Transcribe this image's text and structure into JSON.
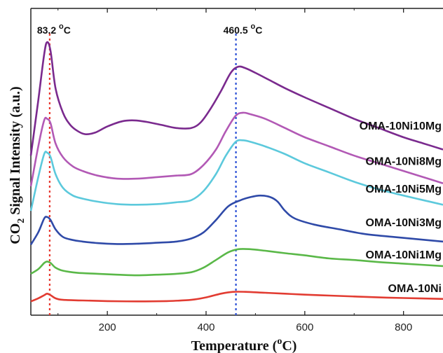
{
  "chart_data": {
    "type": "line",
    "xlabel": {
      "base": "Temperature (",
      "sup": "o",
      "tail": "C)"
    },
    "ylabel": {
      "pre": "CO",
      "sub": "2",
      "post": " Signal Intensity (a.u.)"
    },
    "xlim": [
      45,
      880
    ],
    "ylim": [
      0,
      100
    ],
    "xticks": [
      200,
      400,
      600,
      800
    ],
    "xtick_labels": [
      "200",
      "400",
      "600",
      "800"
    ],
    "peaks": [
      {
        "x": 83.2,
        "label": "83.2",
        "sup": "o",
        "unit": "C",
        "color": "#e8382f"
      },
      {
        "x": 460.5,
        "label": "460.5",
        "sup": "o",
        "unit": "C",
        "color": "#2a4fd6"
      }
    ],
    "series": [
      {
        "name": "OMA-10Ni10Mg",
        "color": "#7a2a8e",
        "points": [
          [
            45,
            52
          ],
          [
            60,
            70
          ],
          [
            72,
            85
          ],
          [
            78,
            89
          ],
          [
            85,
            86
          ],
          [
            95,
            74
          ],
          [
            110,
            66
          ],
          [
            125,
            62
          ],
          [
            140,
            60
          ],
          [
            155,
            59
          ],
          [
            175,
            59.5
          ],
          [
            200,
            61.5
          ],
          [
            230,
            63.2
          ],
          [
            255,
            63.5
          ],
          [
            280,
            63
          ],
          [
            310,
            62
          ],
          [
            340,
            61
          ],
          [
            370,
            61
          ],
          [
            390,
            63
          ],
          [
            410,
            67.5
          ],
          [
            430,
            73
          ],
          [
            450,
            79
          ],
          [
            465,
            81
          ],
          [
            480,
            80.5
          ],
          [
            500,
            79
          ],
          [
            530,
            76.5
          ],
          [
            560,
            74
          ],
          [
            600,
            71
          ],
          [
            650,
            67.5
          ],
          [
            700,
            64
          ],
          [
            750,
            61
          ],
          [
            800,
            58
          ],
          [
            840,
            56
          ],
          [
            880,
            54
          ]
        ]
      },
      {
        "name": "OMA-10Ni8Mg",
        "color": "#b259b5",
        "points": [
          [
            45,
            42
          ],
          [
            60,
            55
          ],
          [
            72,
            63.5
          ],
          [
            78,
            64
          ],
          [
            85,
            62.5
          ],
          [
            95,
            56
          ],
          [
            110,
            51.5
          ],
          [
            130,
            48.5
          ],
          [
            150,
            47
          ],
          [
            180,
            45.5
          ],
          [
            220,
            44.5
          ],
          [
            260,
            44.5
          ],
          [
            300,
            45
          ],
          [
            340,
            45.5
          ],
          [
            370,
            46
          ],
          [
            395,
            49
          ],
          [
            420,
            54
          ],
          [
            440,
            60
          ],
          [
            460,
            65
          ],
          [
            475,
            66
          ],
          [
            490,
            65.5
          ],
          [
            520,
            64
          ],
          [
            560,
            61
          ],
          [
            600,
            58
          ],
          [
            650,
            55
          ],
          [
            700,
            52
          ],
          [
            750,
            49.5
          ],
          [
            800,
            47
          ],
          [
            840,
            45
          ],
          [
            880,
            43
          ]
        ]
      },
      {
        "name": "OMA-10Ni5Mg",
        "color": "#5cc9dc",
        "points": [
          [
            45,
            34
          ],
          [
            60,
            45
          ],
          [
            72,
            52.5
          ],
          [
            78,
            53
          ],
          [
            85,
            51.5
          ],
          [
            95,
            46
          ],
          [
            110,
            41.5
          ],
          [
            130,
            39
          ],
          [
            150,
            38
          ],
          [
            180,
            37
          ],
          [
            220,
            36.2
          ],
          [
            260,
            36
          ],
          [
            300,
            36.2
          ],
          [
            340,
            36.8
          ],
          [
            370,
            37.5
          ],
          [
            395,
            40.5
          ],
          [
            420,
            46
          ],
          [
            440,
            52
          ],
          [
            460,
            56.5
          ],
          [
            475,
            57
          ],
          [
            490,
            56.5
          ],
          [
            520,
            55
          ],
          [
            560,
            52.5
          ],
          [
            600,
            49.5
          ],
          [
            650,
            46.5
          ],
          [
            700,
            43.5
          ],
          [
            750,
            41
          ],
          [
            800,
            39
          ],
          [
            840,
            37.5
          ],
          [
            880,
            36
          ]
        ]
      },
      {
        "name": "OMA-10Ni3Mg",
        "color": "#2f4aa8",
        "points": [
          [
            45,
            23
          ],
          [
            60,
            27
          ],
          [
            72,
            31.5
          ],
          [
            78,
            32
          ],
          [
            85,
            31
          ],
          [
            95,
            28
          ],
          [
            110,
            25.5
          ],
          [
            130,
            24.5
          ],
          [
            150,
            24
          ],
          [
            180,
            23.5
          ],
          [
            220,
            23.2
          ],
          [
            260,
            23.3
          ],
          [
            300,
            23.6
          ],
          [
            340,
            24
          ],
          [
            370,
            25
          ],
          [
            395,
            27
          ],
          [
            420,
            31
          ],
          [
            445,
            35.5
          ],
          [
            470,
            37.5
          ],
          [
            490,
            38.5
          ],
          [
            510,
            39
          ],
          [
            530,
            38.5
          ],
          [
            545,
            37
          ],
          [
            560,
            34
          ],
          [
            580,
            31.5
          ],
          [
            620,
            29.5
          ],
          [
            670,
            28
          ],
          [
            720,
            26.5
          ],
          [
            780,
            25.5
          ],
          [
            880,
            24
          ]
        ]
      },
      {
        "name": "OMA-10Ni1Mg",
        "color": "#5ab848",
        "points": [
          [
            45,
            13.5
          ],
          [
            60,
            15
          ],
          [
            72,
            17
          ],
          [
            78,
            17.5
          ],
          [
            85,
            17
          ],
          [
            95,
            15.5
          ],
          [
            110,
            14.5
          ],
          [
            140,
            13.8
          ],
          [
            180,
            13.5
          ],
          [
            220,
            13.2
          ],
          [
            260,
            13
          ],
          [
            300,
            13.2
          ],
          [
            340,
            13.5
          ],
          [
            370,
            14
          ],
          [
            395,
            15.5
          ],
          [
            420,
            18
          ],
          [
            445,
            20.5
          ],
          [
            465,
            21.5
          ],
          [
            490,
            21.5
          ],
          [
            520,
            21
          ],
          [
            560,
            20.2
          ],
          [
            600,
            19.5
          ],
          [
            650,
            18.5
          ],
          [
            700,
            18
          ],
          [
            750,
            17.3
          ],
          [
            800,
            16.8
          ],
          [
            880,
            16
          ]
        ]
      },
      {
        "name": "OMA-10Ni",
        "color": "#e23c32",
        "points": [
          [
            45,
            4.5
          ],
          [
            60,
            5.5
          ],
          [
            72,
            6.5
          ],
          [
            78,
            7
          ],
          [
            85,
            6.5
          ],
          [
            95,
            5.5
          ],
          [
            110,
            5
          ],
          [
            150,
            4.8
          ],
          [
            200,
            4.6
          ],
          [
            260,
            4.5
          ],
          [
            320,
            4.6
          ],
          [
            370,
            5
          ],
          [
            400,
            5.8
          ],
          [
            430,
            7
          ],
          [
            455,
            7.6
          ],
          [
            480,
            7.6
          ],
          [
            520,
            7.3
          ],
          [
            560,
            7
          ],
          [
            600,
            6.7
          ],
          [
            650,
            6.4
          ],
          [
            700,
            6.1
          ],
          [
            750,
            5.8
          ],
          [
            800,
            5.6
          ],
          [
            880,
            5.3
          ]
        ]
      }
    ],
    "series_label_positions": [
      {
        "x": 632,
        "y": 60.5
      },
      {
        "x": 632,
        "y": 49
      },
      {
        "x": 632,
        "y": 40
      },
      {
        "x": 632,
        "y": 29
      },
      {
        "x": 632,
        "y": 18.5
      },
      {
        "x": 632,
        "y": 7.5
      }
    ]
  }
}
